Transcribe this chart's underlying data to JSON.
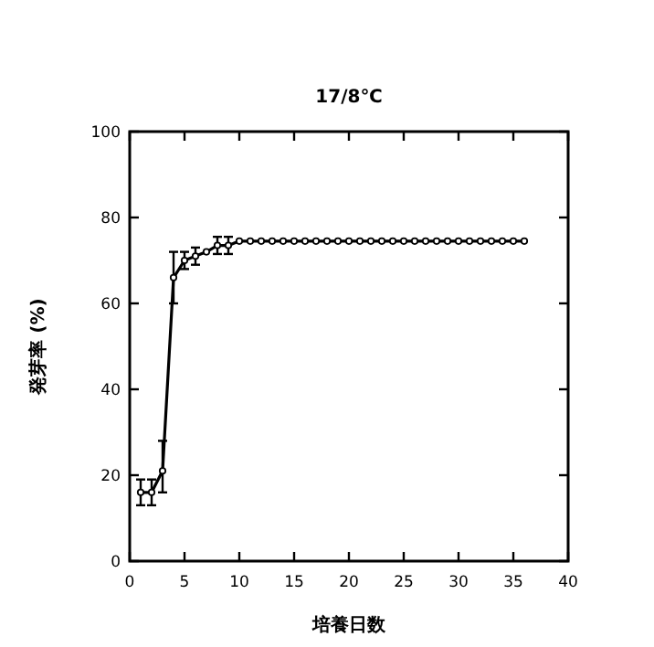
{
  "chart_data": {
    "type": "line",
    "title": "17/8℃",
    "xlabel": "培養日数",
    "ylabel": "発芽率 (%)",
    "x": [
      1,
      2,
      3,
      4,
      5,
      6,
      7,
      8,
      9,
      10,
      11,
      12,
      13,
      14,
      15,
      16,
      17,
      18,
      19,
      20,
      21,
      22,
      23,
      24,
      25,
      26,
      27,
      28,
      29,
      30,
      31,
      32,
      33,
      34,
      35,
      36
    ],
    "series": [
      {
        "color": "#000000",
        "values": [
          16,
          16,
          21,
          66,
          70,
          71,
          72,
          73.5,
          73.5,
          74.5,
          74.5,
          74.5,
          74.5,
          74.5,
          74.5,
          74.5,
          74.5,
          74.5,
          74.5,
          74.5,
          74.5,
          74.5,
          74.5,
          74.5,
          74.5,
          74.5,
          74.5,
          74.5,
          74.5,
          74.5,
          74.5,
          74.5,
          74.5,
          74.5,
          74.5,
          74.5
        ],
        "errors": [
          3,
          3,
          [
            16,
            28
          ],
          [
            60,
            72
          ],
          2,
          2,
          null,
          2,
          2,
          null,
          null,
          null,
          null,
          null,
          null,
          null,
          null,
          null,
          null,
          null,
          null,
          null,
          null,
          null,
          null,
          null,
          null,
          null,
          null,
          null,
          null,
          null,
          null,
          null,
          null,
          null
        ]
      }
    ],
    "xlim": [
      0,
      40
    ],
    "xticks": [
      0,
      5,
      10,
      15,
      20,
      25,
      30,
      35,
      40
    ],
    "ylim": [
      0,
      100
    ],
    "yticks": [
      0,
      20,
      40,
      60,
      80,
      100
    ],
    "marker": "circle",
    "line_style": "solid",
    "grid": false
  }
}
